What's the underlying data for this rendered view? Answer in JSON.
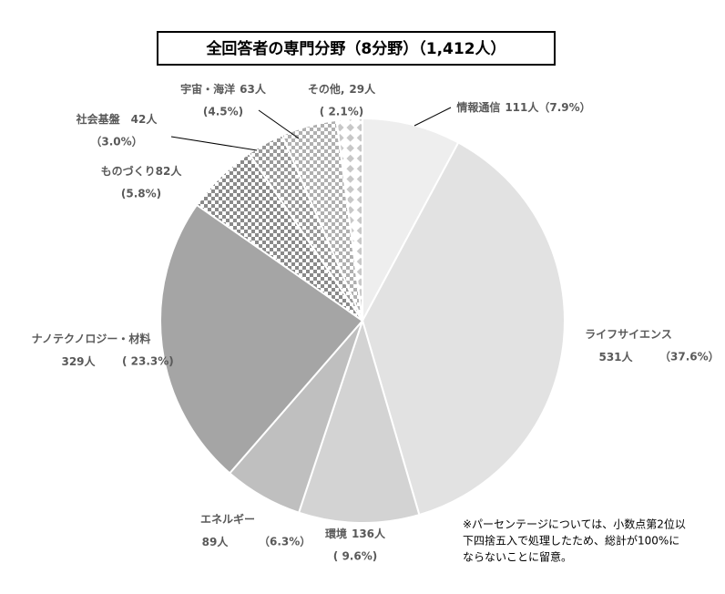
{
  "chart_data": {
    "type": "pie",
    "title": "全回答者の専門分野（8分野）（1,412人）",
    "categories": [
      "情報通信",
      "ライフサイエンス",
      "環境",
      "エネルギー",
      "ナノテクノロジー・材料",
      "ものづくり",
      "社会基盤",
      "宇宙・海洋",
      "その他,"
    ],
    "values": [
      111,
      531,
      136,
      89,
      329,
      82,
      42,
      63,
      29
    ],
    "value_labels": [
      "111人",
      "531人",
      "136人",
      "89人",
      "329人",
      "82人",
      "42人",
      "63人",
      "29人"
    ],
    "percents": [
      7.9,
      37.6,
      9.6,
      6.3,
      23.3,
      5.8,
      3.0,
      4.5,
      2.1
    ],
    "percent_labels": [
      "（7.9%）",
      "（37.6%）",
      "( 9.6%)",
      "（6.3%）",
      "( 23.3%)",
      "(5.8%)",
      "（3.0%）",
      "(4.5%)",
      "( 2.1%)"
    ],
    "colors": [
      "#eeeeee",
      "#e2e2e2",
      "#d3d3d3",
      "#bfbfbf",
      "#a5a5a5",
      "#8a8a8a",
      "#9a9a9a",
      "#b0b0b0",
      "#c8c8c8"
    ],
    "fill_pattern": [
      null,
      null,
      null,
      null,
      null,
      "checker",
      "checker",
      "checker",
      "diamond"
    ],
    "note": [
      "※パーセンテージについては、小数点第2位以",
      "下四捨五入で処理したため、総計が100%に",
      "ならないことに留意。"
    ]
  }
}
